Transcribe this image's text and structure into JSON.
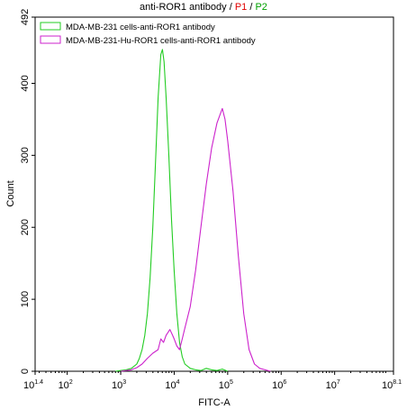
{
  "chart_data": {
    "type": "line",
    "title": {
      "prefix": "anti-ROR1 antibody / ",
      "p1": "P1",
      "sep": " / ",
      "p2": "P2"
    },
    "title_colors": {
      "prefix": "#000000",
      "p1": "#e00000",
      "p2": "#00a000"
    },
    "xlabel": "FITC-A",
    "ylabel": "Count",
    "x_scale": "log10",
    "xlim": [
      1.4,
      8.1
    ],
    "ylim": [
      0,
      492
    ],
    "x_ticks": [
      {
        "value": 1.4,
        "base": "10",
        "exp": "1.4"
      },
      {
        "value": 2,
        "base": "10",
        "exp": "2"
      },
      {
        "value": 3,
        "base": "10",
        "exp": "3"
      },
      {
        "value": 4,
        "base": "10",
        "exp": "4"
      },
      {
        "value": 5,
        "base": "10",
        "exp": "5"
      },
      {
        "value": 6,
        "base": "10",
        "exp": "6"
      },
      {
        "value": 7,
        "base": "10",
        "exp": "7"
      },
      {
        "value": 8.1,
        "base": "10",
        "exp": "8.1"
      }
    ],
    "y_ticks": [
      0,
      100,
      200,
      300,
      400,
      492
    ],
    "legend_position": "top-left",
    "series": [
      {
        "name": "MDA-MB-231 cells-anti-ROR1 antibody",
        "color": "#22cc22",
        "points": [
          [
            2.9,
            0
          ],
          [
            3.0,
            1
          ],
          [
            3.1,
            2
          ],
          [
            3.2,
            4
          ],
          [
            3.3,
            10
          ],
          [
            3.35,
            18
          ],
          [
            3.4,
            30
          ],
          [
            3.45,
            50
          ],
          [
            3.5,
            80
          ],
          [
            3.55,
            130
          ],
          [
            3.6,
            200
          ],
          [
            3.65,
            290
          ],
          [
            3.7,
            380
          ],
          [
            3.75,
            440
          ],
          [
            3.78,
            447
          ],
          [
            3.81,
            430
          ],
          [
            3.85,
            380
          ],
          [
            3.9,
            300
          ],
          [
            3.95,
            210
          ],
          [
            4.0,
            140
          ],
          [
            4.05,
            80
          ],
          [
            4.1,
            40
          ],
          [
            4.15,
            20
          ],
          [
            4.2,
            10
          ],
          [
            4.3,
            4
          ],
          [
            4.4,
            2
          ],
          [
            4.5,
            1
          ],
          [
            4.6,
            4
          ],
          [
            4.7,
            2
          ],
          [
            4.8,
            1
          ],
          [
            4.9,
            3
          ],
          [
            5.0,
            0
          ]
        ]
      },
      {
        "name": "MDA-MB-231-Hu-ROR1 cells-anti-ROR1 antibody",
        "color": "#cc22cc",
        "points": [
          [
            3.0,
            0
          ],
          [
            3.2,
            2
          ],
          [
            3.3,
            5
          ],
          [
            3.4,
            10
          ],
          [
            3.5,
            18
          ],
          [
            3.6,
            25
          ],
          [
            3.7,
            30
          ],
          [
            3.75,
            45
          ],
          [
            3.8,
            40
          ],
          [
            3.85,
            50
          ],
          [
            3.92,
            58
          ],
          [
            3.97,
            50
          ],
          [
            4.0,
            45
          ],
          [
            4.05,
            35
          ],
          [
            4.1,
            30
          ],
          [
            4.15,
            45
          ],
          [
            4.2,
            60
          ],
          [
            4.3,
            90
          ],
          [
            4.4,
            140
          ],
          [
            4.5,
            200
          ],
          [
            4.6,
            260
          ],
          [
            4.7,
            310
          ],
          [
            4.8,
            345
          ],
          [
            4.9,
            365
          ],
          [
            4.95,
            350
          ],
          [
            5.0,
            320
          ],
          [
            5.1,
            250
          ],
          [
            5.2,
            160
          ],
          [
            5.3,
            80
          ],
          [
            5.4,
            30
          ],
          [
            5.5,
            10
          ],
          [
            5.6,
            4
          ],
          [
            5.7,
            2
          ],
          [
            5.8,
            0
          ]
        ]
      }
    ]
  }
}
